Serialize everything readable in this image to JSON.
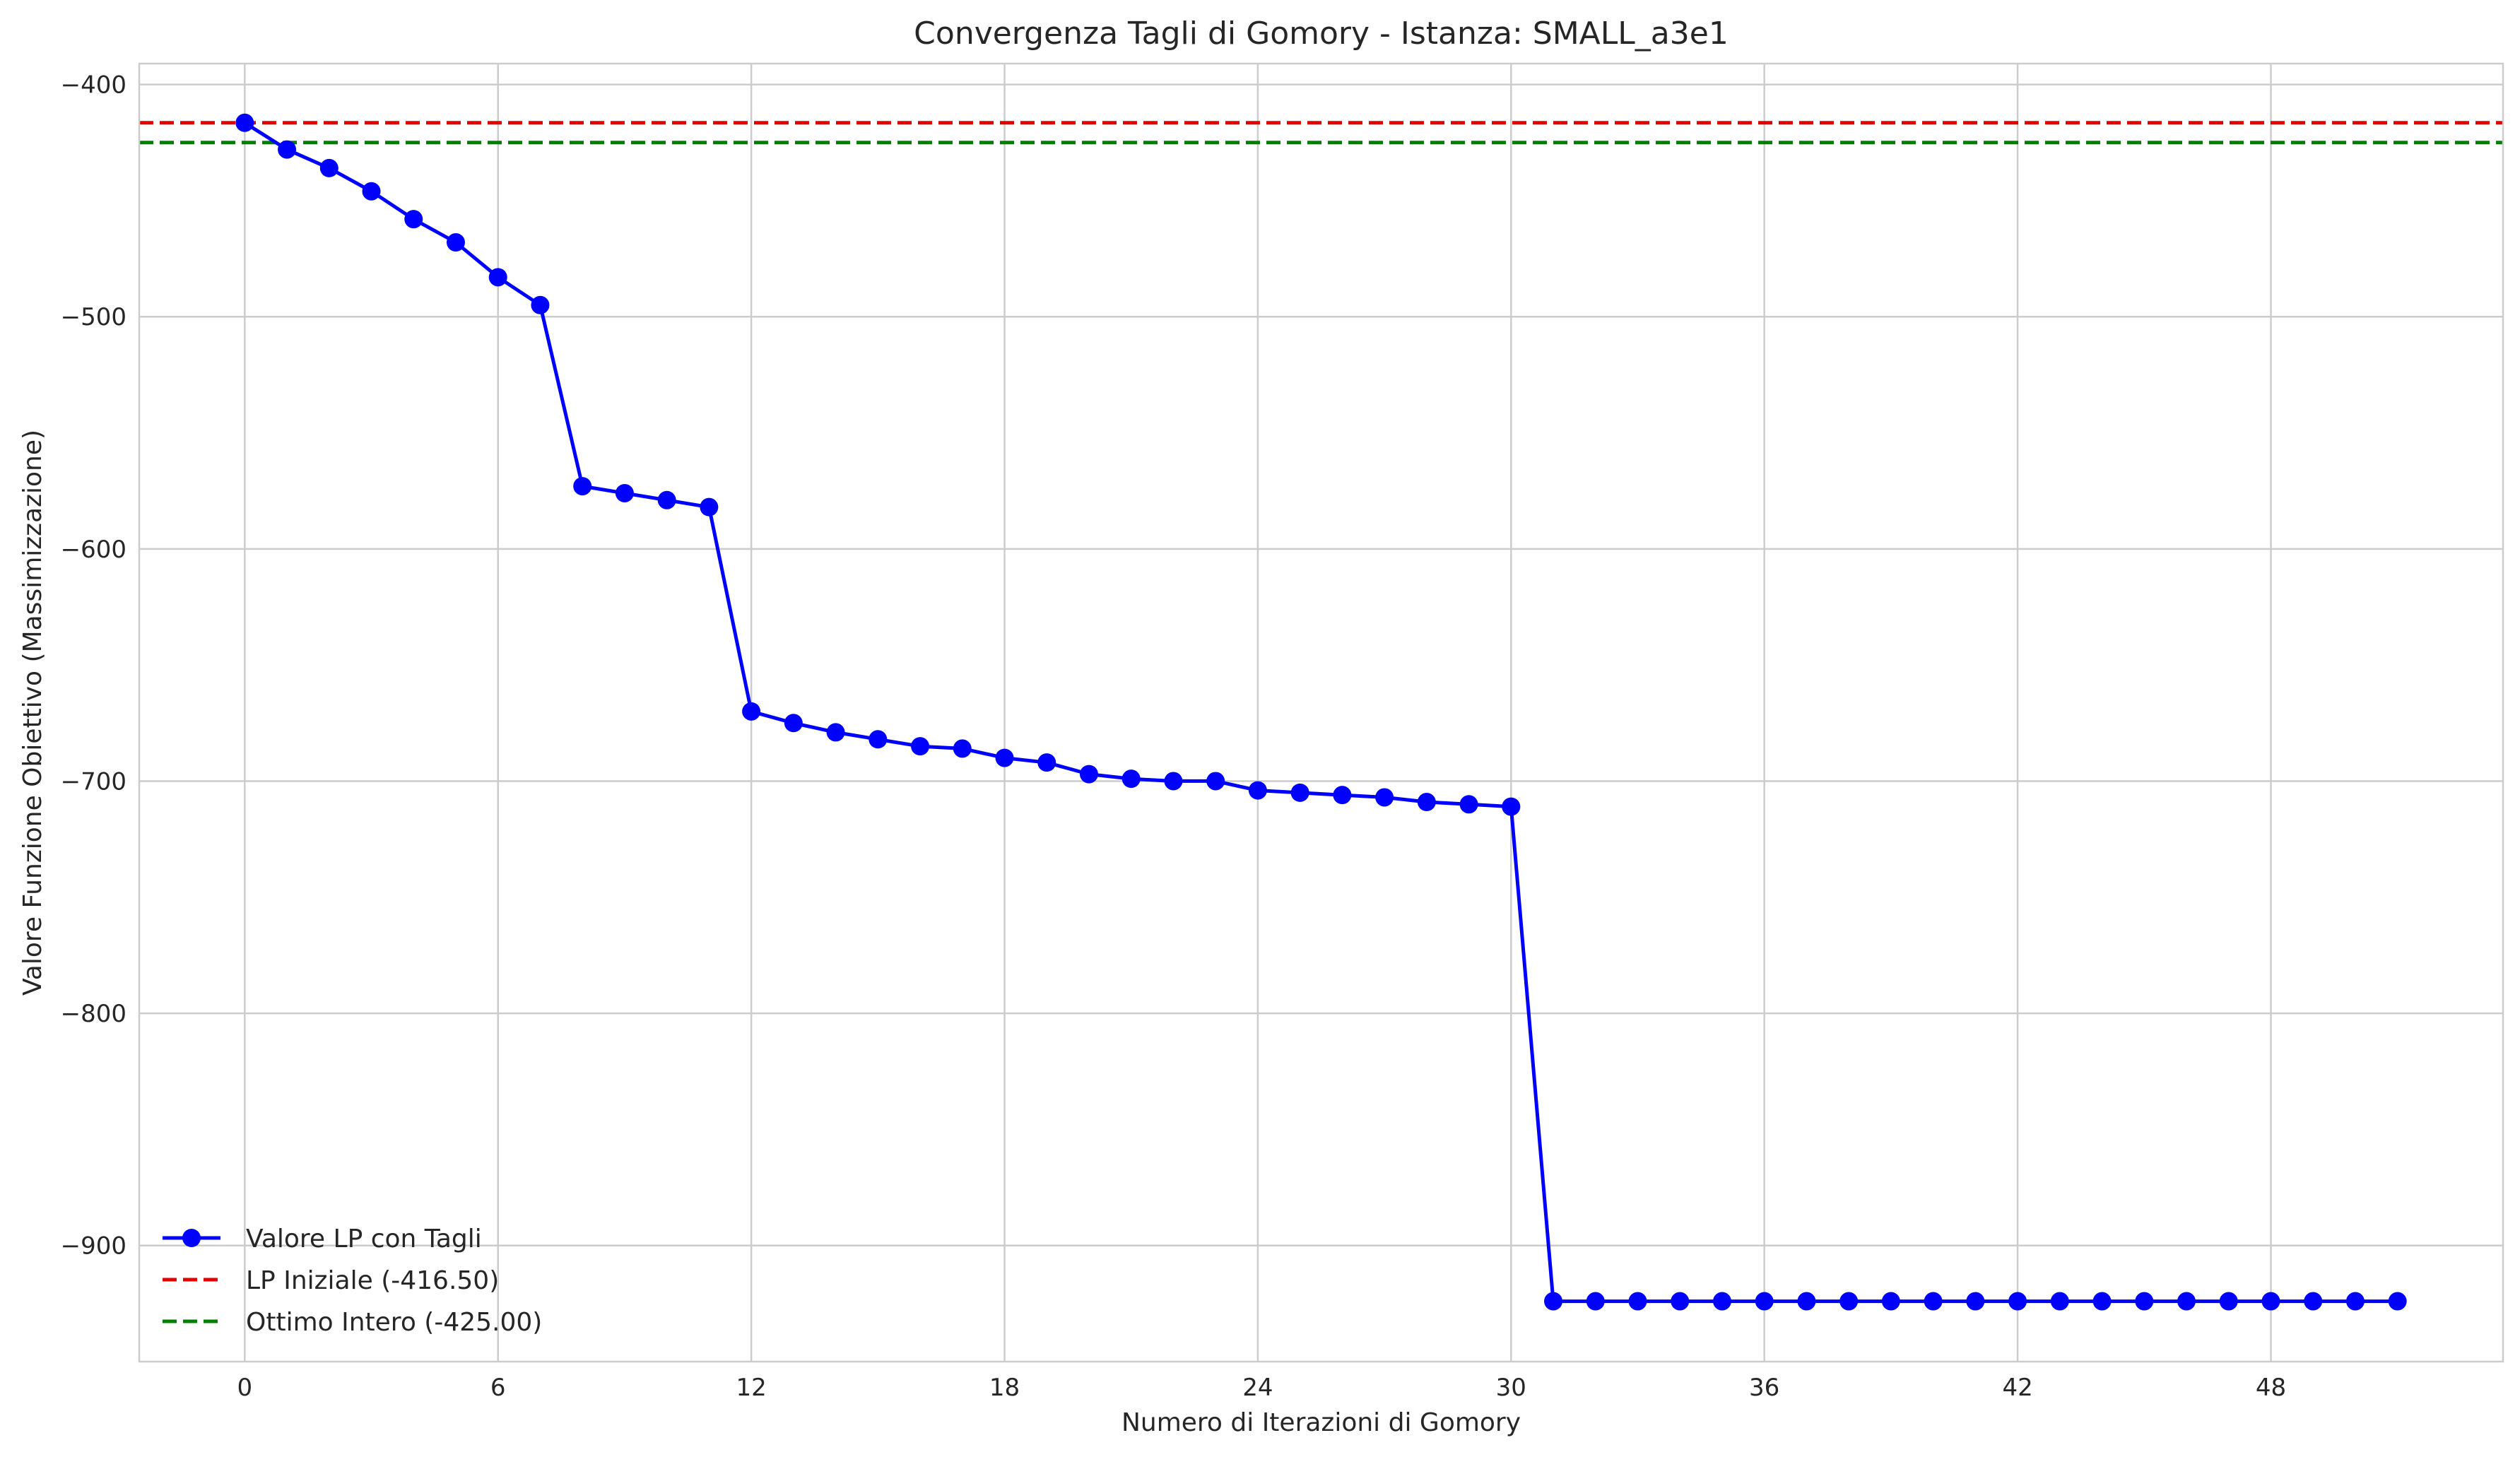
{
  "chart_data": {
    "type": "line",
    "title": "Convergenza Tagli di Gomory - Istanza: SMALL_a3e1",
    "xlabel": "Numero di Iterazioni di Gomory",
    "ylabel": "Valore Funzione Obiettivo (Massimizzazione)",
    "xlim": [
      -2.5,
      53.5
    ],
    "ylim": [
      -950,
      -391
    ],
    "xticks": [
      0,
      6,
      12,
      18,
      24,
      30,
      36,
      42,
      48
    ],
    "yticks": [
      -400,
      -500,
      -600,
      -700,
      -800,
      -900
    ],
    "tick_labels_x": [
      "0",
      "6",
      "12",
      "18",
      "24",
      "30",
      "36",
      "42",
      "48"
    ],
    "tick_labels_y": [
      "−400",
      "−500",
      "−600",
      "−700",
      "−800",
      "−900"
    ],
    "grid": true,
    "legend_position": "lower-left",
    "series": [
      {
        "name": "Valore LP con Tagli",
        "color": "#0000ff",
        "style": "solid",
        "marker": "circle",
        "x": [
          0,
          1,
          2,
          3,
          4,
          5,
          6,
          7,
          8,
          9,
          10,
          11,
          12,
          13,
          14,
          15,
          16,
          17,
          18,
          19,
          20,
          21,
          22,
          23,
          24,
          25,
          26,
          27,
          28,
          29,
          30,
          31,
          32,
          33,
          34,
          35,
          36,
          37,
          38,
          39,
          40,
          41,
          42,
          43,
          44,
          45,
          46,
          47,
          48,
          49,
          50,
          51
        ],
        "values": [
          -416.5,
          -428,
          -436,
          -446,
          -458,
          -468,
          -483,
          -495,
          -573,
          -576,
          -579,
          -582,
          -670,
          -675,
          -679,
          -682,
          -685,
          -686,
          -690,
          -692,
          -697,
          -699,
          -700,
          -700,
          -704,
          -705,
          -706,
          -707,
          -709,
          -710,
          -711,
          -924,
          -924,
          -924,
          -924,
          -924,
          -924,
          -924,
          -924,
          -924,
          -924,
          -924,
          -924,
          -924,
          -924,
          -924,
          -924,
          -924,
          -924,
          -924,
          -924,
          -924
        ]
      },
      {
        "name": "LP Iniziale (-416.50)",
        "color": "#e50000",
        "style": "dashed",
        "hline": -416.5
      },
      {
        "name": "Ottimo Intero (-425.00)",
        "color": "#008000",
        "style": "dashed",
        "hline": -425.0
      }
    ]
  }
}
